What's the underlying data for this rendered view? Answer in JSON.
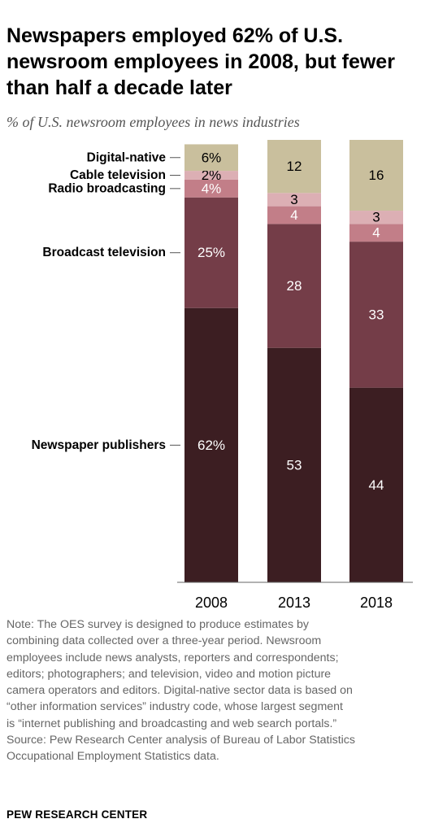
{
  "chart_data": {
    "type": "bar",
    "stacked": true,
    "title": "Newspapers employed 62% of U.S. newsroom employees in 2008, but fewer than half a decade later",
    "subtitle": "% of U.S. newsroom employees in news industries",
    "categories": [
      "2008",
      "2013",
      "2018"
    ],
    "ylim": [
      0,
      100
    ],
    "grid": false,
    "legend": "left",
    "series": [
      {
        "name": "Newspaper publishers",
        "values": [
          62,
          53,
          44
        ],
        "labels": [
          "62%",
          "53",
          "44"
        ],
        "color": "#3c1e22",
        "label_color": "#ffffff"
      },
      {
        "name": "Broadcast television",
        "values": [
          25,
          28,
          33
        ],
        "labels": [
          "25%",
          "28",
          "33"
        ],
        "color": "#743d48",
        "label_color": "#ffffff"
      },
      {
        "name": "Radio broadcasting",
        "values": [
          4,
          4,
          4
        ],
        "labels": [
          "4%",
          "4",
          "4"
        ],
        "color": "#c27e88",
        "label_color": "#ffffff"
      },
      {
        "name": "Cable television",
        "values": [
          2,
          3,
          3
        ],
        "labels": [
          "2%",
          "3",
          "3"
        ],
        "color": "#dcafb4",
        "label_color": "#000000"
      },
      {
        "name": "Digital-native",
        "values": [
          6,
          12,
          16
        ],
        "labels": [
          "6%",
          "12",
          "16"
        ],
        "color": "#c9bf9d",
        "label_color": "#000000"
      }
    ]
  },
  "note": {
    "lines": [
      "Note: The OES survey is designed to produce estimates by",
      "combining data collected over a three-year period. Newsroom",
      "employees include news analysts, reporters and correspondents;",
      "editors; photographers; and television, video and motion picture",
      "camera operators and editors. Digital-native sector data is based on",
      "“other information services” industry code, whose largest segment",
      "is “internet publishing and broadcasting and web search portals.”",
      "Source: Pew Research Center analysis of Bureau of Labor Statistics",
      "Occupational Employment Statistics data."
    ]
  },
  "brand": "PEW RESEARCH CENTER"
}
